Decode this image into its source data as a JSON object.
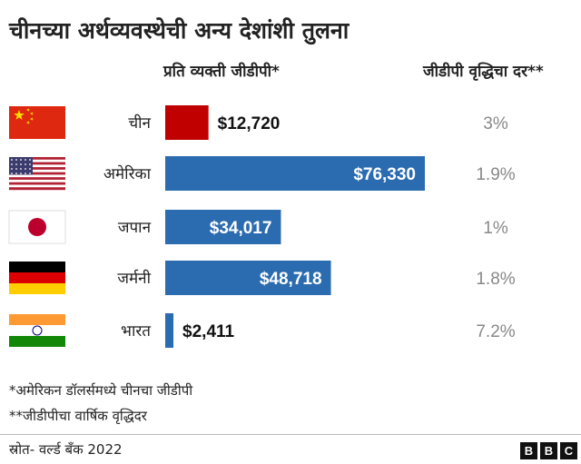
{
  "title": "चीनच्या अर्थव्यवस्थेची अन्य देशांशी तुलना",
  "columns": {
    "gdp_per_capita": "प्रति व्यक्ती जीडीपी*",
    "growth_rate": "जीडीपी वृद्धिचा दर**"
  },
  "chart_data": {
    "type": "bar",
    "orientation": "horizontal",
    "categories": [
      "चीन",
      "अमेरिका",
      "जपान",
      "जर्मनी",
      "भारत"
    ],
    "series": [
      {
        "name": "प्रति व्यक्ती जीडीपी*",
        "values": [
          12720,
          76330,
          34017,
          48718,
          2411
        ],
        "labels": [
          "$12,720",
          "$76,330",
          "$34,017",
          "$48,718",
          "$2,411"
        ]
      }
    ],
    "growth_labels": [
      "3%",
      "1.9%",
      "1%",
      "1.8%",
      "7.2%"
    ],
    "growth_values": [
      3,
      1.9,
      1,
      1.8,
      7.2
    ],
    "bar_colors": [
      "#c00000",
      "#2b6cb0",
      "#2b6cb0",
      "#2b6cb0",
      "#2b6cb0"
    ],
    "flags": [
      "china-flag",
      "usa-flag",
      "japan-flag",
      "germany-flag",
      "india-flag"
    ],
    "xlim": [
      0,
      76330
    ]
  },
  "footnotes": [
    "*अमेरिकन डॉलर्समध्ये चीनचा जीडीपी",
    "**जीडीपीचा वार्षिक वृद्धिदर"
  ],
  "source": "स्रोत- वर्ल्ड बँक 2022",
  "brand": [
    "B",
    "B",
    "C"
  ]
}
